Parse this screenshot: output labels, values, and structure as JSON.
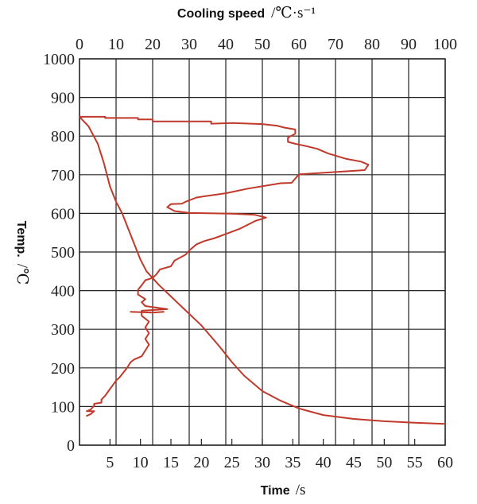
{
  "chart_data": {
    "type": "line",
    "xlabel_bottom": {
      "name": "Time",
      "unit": "/s"
    },
    "xlabel_top": {
      "name": "Cooling speed",
      "unit": "/℃·s⁻¹"
    },
    "ylabel": {
      "name": "Temp.",
      "unit": "/℃"
    },
    "xlim_bottom": [
      0,
      60
    ],
    "xlim_top": [
      0,
      100
    ],
    "ylim": [
      0,
      1000
    ],
    "xticks_bottom": [
      5,
      10,
      15,
      20,
      25,
      30,
      35,
      40,
      45,
      50,
      55,
      60
    ],
    "xticks_top": [
      0,
      10,
      20,
      30,
      40,
      50,
      60,
      70,
      80,
      90,
      100
    ],
    "yticks": [
      0,
      100,
      200,
      300,
      400,
      500,
      600,
      700,
      800,
      900,
      1000
    ],
    "grid": true,
    "line_color": "#c0392b",
    "series": [
      {
        "x_axis": "bottom",
        "points": [
          [
            0,
            850
          ],
          [
            1.5,
            825
          ],
          [
            3,
            780
          ],
          [
            4,
            730
          ],
          [
            5,
            670
          ],
          [
            6,
            630
          ],
          [
            7,
            600
          ],
          [
            8,
            560
          ],
          [
            9,
            520
          ],
          [
            10,
            480
          ],
          [
            11,
            450
          ],
          [
            13,
            415
          ],
          [
            15,
            385
          ],
          [
            17,
            355
          ],
          [
            20,
            310
          ],
          [
            23,
            255
          ],
          [
            25,
            215
          ],
          [
            27,
            180
          ],
          [
            30,
            140
          ],
          [
            33,
            115
          ],
          [
            36,
            95
          ],
          [
            40,
            78
          ],
          [
            45,
            68
          ],
          [
            50,
            62
          ],
          [
            55,
            58
          ],
          [
            60,
            55
          ]
        ]
      },
      {
        "x_axis": "top",
        "points": [
          [
            0,
            850
          ],
          [
            7,
            850
          ],
          [
            7,
            847
          ],
          [
            16,
            847
          ],
          [
            16,
            843
          ],
          [
            20,
            843
          ],
          [
            20,
            838
          ],
          [
            36,
            838
          ],
          [
            36,
            832
          ],
          [
            42,
            834
          ],
          [
            50,
            831
          ],
          [
            54,
            827
          ],
          [
            56,
            822
          ],
          [
            59,
            817
          ],
          [
            59,
            806
          ],
          [
            57,
            796
          ],
          [
            57,
            785
          ],
          [
            59,
            780
          ],
          [
            62,
            774
          ],
          [
            65,
            767
          ],
          [
            68,
            755
          ],
          [
            73,
            741
          ],
          [
            77,
            734
          ],
          [
            79,
            726
          ],
          [
            78,
            712
          ],
          [
            70,
            707
          ],
          [
            60,
            701
          ],
          [
            58,
            679
          ],
          [
            55,
            678
          ],
          [
            46,
            664
          ],
          [
            40,
            652
          ],
          [
            34,
            644
          ],
          [
            32,
            641
          ],
          [
            29,
            630
          ],
          [
            28,
            625
          ],
          [
            25,
            624
          ],
          [
            24,
            616
          ],
          [
            26,
            606
          ],
          [
            30,
            601
          ],
          [
            37,
            600
          ],
          [
            42,
            599
          ],
          [
            48,
            596
          ],
          [
            51,
            589
          ],
          [
            48,
            580
          ],
          [
            44,
            561
          ],
          [
            41,
            550
          ],
          [
            37,
            536
          ],
          [
            34,
            528
          ],
          [
            32,
            520
          ],
          [
            30,
            504
          ],
          [
            29,
            493
          ],
          [
            26,
            478
          ],
          [
            25,
            463
          ],
          [
            22,
            455
          ],
          [
            21,
            442
          ],
          [
            20,
            433
          ],
          [
            18,
            427
          ],
          [
            17,
            414
          ],
          [
            16,
            402
          ],
          [
            16,
            390
          ],
          [
            18,
            378
          ],
          [
            17,
            370
          ],
          [
            18,
            360
          ],
          [
            24,
            352
          ],
          [
            17,
            348
          ],
          [
            17,
            335
          ],
          [
            19,
            320
          ],
          [
            18,
            305
          ],
          [
            19,
            290
          ],
          [
            18,
            275
          ],
          [
            19,
            260
          ],
          [
            18,
            245
          ],
          [
            17,
            230
          ],
          [
            15,
            222
          ],
          [
            14,
            215
          ],
          [
            13,
            200
          ],
          [
            12,
            188
          ],
          [
            11,
            176
          ],
          [
            10,
            167
          ],
          [
            9,
            154
          ],
          [
            8,
            141
          ],
          [
            7,
            128
          ],
          [
            6,
            118
          ],
          [
            6,
            110
          ],
          [
            4,
            107
          ],
          [
            4,
            102
          ],
          [
            3,
            92
          ],
          [
            2,
            88
          ],
          [
            4,
            88
          ],
          [
            3,
            80
          ],
          [
            2,
            76
          ]
        ]
      },
      {
        "x_axis": "top",
        "points": [
          [
            14,
            345
          ],
          [
            20,
            343
          ],
          [
            23,
            345
          ]
        ]
      }
    ]
  }
}
